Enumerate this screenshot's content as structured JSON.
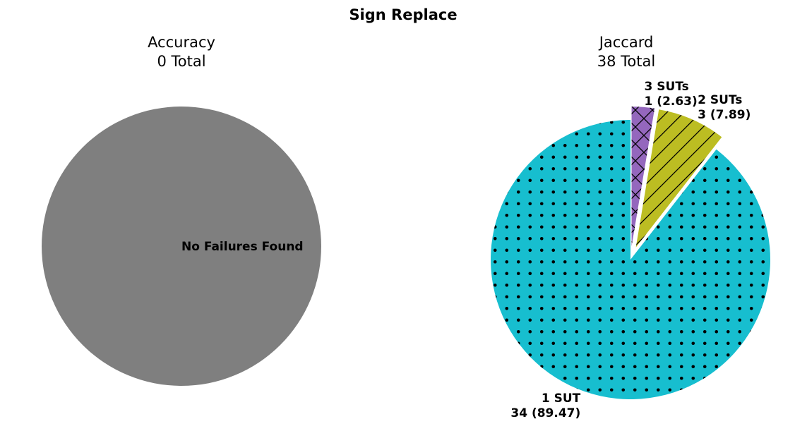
{
  "figure_title": "Sign Replace",
  "colors": {
    "empty_pie": "#7f7f7f",
    "one_sut": "#17becf",
    "two_suts": "#bcbd22",
    "three_suts": "#9467bd",
    "hatch": "#000000"
  },
  "chart_data": [
    {
      "type": "pie",
      "title_line1": "Accuracy",
      "title_line2": "0 Total",
      "total": 0,
      "slices": [],
      "empty_label": "No Failures Found"
    },
    {
      "type": "pie",
      "title_line1": "Jaccard",
      "title_line2": "38 Total",
      "total": 38,
      "slices": [
        {
          "label": "1 SUT",
          "count": 34,
          "percent": 89.47,
          "value_text": "34 (89.47)",
          "color": "#17becf",
          "hatch": "dots",
          "exploded": false
        },
        {
          "label": "2 SUTs",
          "count": 3,
          "percent": 7.89,
          "value_text": "3 (7.89)",
          "color": "#bcbd22",
          "hatch": "diagonal",
          "exploded": true
        },
        {
          "label": "3 SUTs",
          "count": 1,
          "percent": 2.63,
          "value_text": "1 (2.63)",
          "color": "#9467bd",
          "hatch": "crosshatch",
          "exploded": true
        }
      ]
    }
  ]
}
